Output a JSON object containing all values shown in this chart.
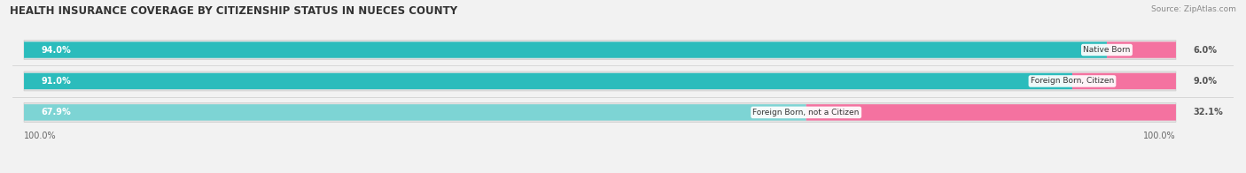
{
  "title": "HEALTH INSURANCE COVERAGE BY CITIZENSHIP STATUS IN NUECES COUNTY",
  "source": "Source: ZipAtlas.com",
  "categories": [
    "Native Born",
    "Foreign Born, Citizen",
    "Foreign Born, not a Citizen"
  ],
  "with_coverage": [
    94.0,
    91.0,
    67.9
  ],
  "without_coverage": [
    6.0,
    9.0,
    32.1
  ],
  "color_with_1": "#2BBCBC",
  "color_with_2": "#2BBCBC",
  "color_with_3": "#7DD4D4",
  "color_without": "#F472A0",
  "bg_color": "#F2F2F2",
  "bar_bg": "#E2E2E2",
  "title_fontsize": 8.5,
  "label_fontsize": 7.0,
  "tick_fontsize": 7.0,
  "source_fontsize": 6.5,
  "legend_fontsize": 7.5,
  "axis_label_left": "100.0%",
  "axis_label_right": "100.0%"
}
